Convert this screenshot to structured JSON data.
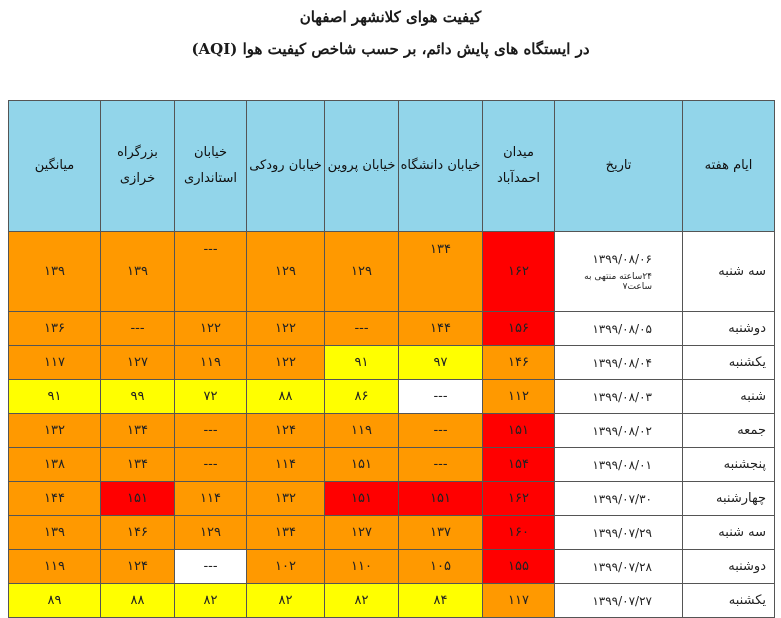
{
  "title_line1": "کیفیت هوای کلانشهر اصفهان",
  "title_line2": "در ایستگاه های پایش دائم، بر حسب شاخص کیفیت هوا (AQI)",
  "headers": [
    "ایام هفته",
    "تاریخ",
    "میدان احمدآباد",
    "خیابان دانشگاه",
    "خیابان پروین",
    "خیابان رودکی",
    "خیابان استانداری",
    "بزرگراه خرازی",
    "میانگین"
  ],
  "colors": {
    "red": "#ff0000",
    "orange": "#ff9900",
    "yellow": "#ffff00",
    "white": "#ffffff",
    "header": "#92d5ea"
  },
  "rows": [
    {
      "day": "سه شنبه",
      "date": "۱۳۹۹/۰۸/۰۶",
      "note": "۲۴ساعته منتهی به ساعت۷",
      "values": [
        {
          "v": "۱۶۲",
          "c": "red"
        },
        {
          "v": "۱۳۴",
          "c": "orange"
        },
        {
          "v": "۱۲۹",
          "c": "orange"
        },
        {
          "v": "۱۲۹",
          "c": "orange"
        },
        {
          "v": "---",
          "c": "orange"
        },
        {
          "v": "۱۳۹",
          "c": "orange"
        },
        {
          "v": "۱۳۹",
          "c": "orange"
        }
      ]
    },
    {
      "day": "دوشنبه",
      "date": "۱۳۹۹/۰۸/۰۵",
      "note": "",
      "values": [
        {
          "v": "۱۵۶",
          "c": "red"
        },
        {
          "v": "۱۴۴",
          "c": "orange"
        },
        {
          "v": "---",
          "c": "orange"
        },
        {
          "v": "۱۲۲",
          "c": "orange"
        },
        {
          "v": "۱۲۲",
          "c": "orange"
        },
        {
          "v": "---",
          "c": "orange"
        },
        {
          "v": "۱۳۶",
          "c": "orange"
        }
      ]
    },
    {
      "day": "یکشنبه",
      "date": "۱۳۹۹/۰۸/۰۴",
      "note": "",
      "values": [
        {
          "v": "۱۴۶",
          "c": "orange"
        },
        {
          "v": "۹۷",
          "c": "yellow"
        },
        {
          "v": "۹۱",
          "c": "yellow"
        },
        {
          "v": "۱۲۲",
          "c": "orange"
        },
        {
          "v": "۱۱۹",
          "c": "orange"
        },
        {
          "v": "۱۲۷",
          "c": "orange"
        },
        {
          "v": "۱۱۷",
          "c": "orange"
        }
      ]
    },
    {
      "day": "شنبه",
      "date": "۱۳۹۹/۰۸/۰۳",
      "note": "",
      "values": [
        {
          "v": "۱۱۲",
          "c": "orange"
        },
        {
          "v": "---",
          "c": "white"
        },
        {
          "v": "۸۶",
          "c": "yellow"
        },
        {
          "v": "۸۸",
          "c": "yellow"
        },
        {
          "v": "۷۲",
          "c": "yellow"
        },
        {
          "v": "۹۹",
          "c": "yellow"
        },
        {
          "v": "۹۱",
          "c": "yellow"
        }
      ]
    },
    {
      "day": "جمعه",
      "date": "۱۳۹۹/۰۸/۰۲",
      "note": "",
      "values": [
        {
          "v": "۱۵۱",
          "c": "red"
        },
        {
          "v": "---",
          "c": "orange"
        },
        {
          "v": "۱۱۹",
          "c": "orange"
        },
        {
          "v": "۱۲۴",
          "c": "orange"
        },
        {
          "v": "---",
          "c": "orange"
        },
        {
          "v": "۱۳۴",
          "c": "orange"
        },
        {
          "v": "۱۳۲",
          "c": "orange"
        }
      ]
    },
    {
      "day": "پنجشنبه",
      "date": "۱۳۹۹/۰۸/۰۱",
      "note": "",
      "values": [
        {
          "v": "۱۵۴",
          "c": "red"
        },
        {
          "v": "---",
          "c": "orange"
        },
        {
          "v": "۱۵۱",
          "c": "orange"
        },
        {
          "v": "۱۱۴",
          "c": "orange"
        },
        {
          "v": "---",
          "c": "orange"
        },
        {
          "v": "۱۳۴",
          "c": "orange"
        },
        {
          "v": "۱۳۸",
          "c": "orange"
        }
      ]
    },
    {
      "day": "چهارشنبه",
      "date": "۱۳۹۹/۰۷/۳۰",
      "note": "",
      "values": [
        {
          "v": "۱۶۲",
          "c": "red"
        },
        {
          "v": "۱۵۱",
          "c": "red"
        },
        {
          "v": "۱۵۱",
          "c": "red"
        },
        {
          "v": "۱۳۲",
          "c": "orange"
        },
        {
          "v": "۱۱۴",
          "c": "orange"
        },
        {
          "v": "۱۵۱",
          "c": "red"
        },
        {
          "v": "۱۴۴",
          "c": "orange"
        }
      ]
    },
    {
      "day": "سه شنبه",
      "date": "۱۳۹۹/۰۷/۲۹",
      "note": "",
      "values": [
        {
          "v": "۱۶۰",
          "c": "red"
        },
        {
          "v": "۱۳۷",
          "c": "orange"
        },
        {
          "v": "۱۲۷",
          "c": "orange"
        },
        {
          "v": "۱۳۴",
          "c": "orange"
        },
        {
          "v": "۱۲۹",
          "c": "orange"
        },
        {
          "v": "۱۴۶",
          "c": "orange"
        },
        {
          "v": "۱۳۹",
          "c": "orange"
        }
      ]
    },
    {
      "day": "دوشنبه",
      "date": "۱۳۹۹/۰۷/۲۸",
      "note": "",
      "values": [
        {
          "v": "۱۵۵",
          "c": "red"
        },
        {
          "v": "۱۰۵",
          "c": "orange"
        },
        {
          "v": "۱۱۰",
          "c": "orange"
        },
        {
          "v": "۱۰۲",
          "c": "orange"
        },
        {
          "v": "---",
          "c": "white"
        },
        {
          "v": "۱۲۴",
          "c": "orange"
        },
        {
          "v": "۱۱۹",
          "c": "orange"
        }
      ]
    },
    {
      "day": "یکشنبه",
      "date": "۱۳۹۹/۰۷/۲۷",
      "note": "",
      "values": [
        {
          "v": "۱۱۷",
          "c": "orange"
        },
        {
          "v": "۸۴",
          "c": "yellow"
        },
        {
          "v": "۸۲",
          "c": "yellow"
        },
        {
          "v": "۸۲",
          "c": "yellow"
        },
        {
          "v": "۸۲",
          "c": "yellow"
        },
        {
          "v": "۸۸",
          "c": "yellow"
        },
        {
          "v": "۸۹",
          "c": "yellow"
        }
      ]
    }
  ]
}
